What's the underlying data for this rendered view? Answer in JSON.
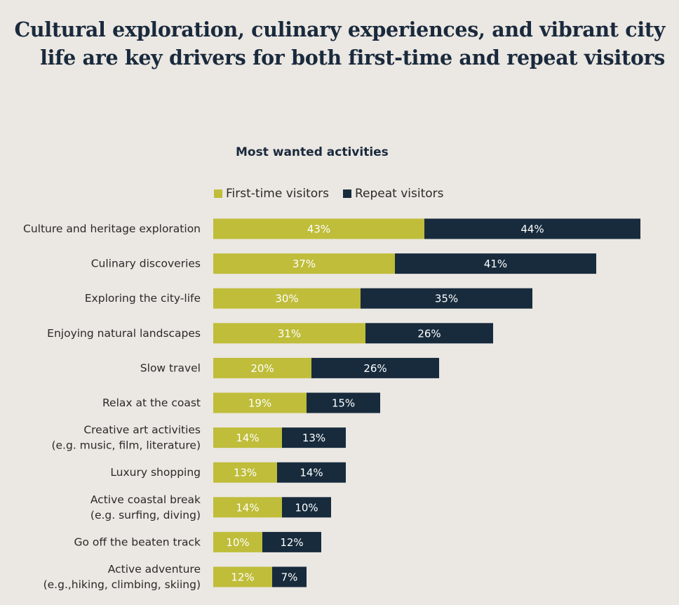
{
  "headline": {
    "line1": "Cultural exploration, culinary experiences, and vibrant city",
    "line2": "life are key drivers for both first-time and repeat visitors"
  },
  "colors": {
    "first_time": "#bfbd3a",
    "repeat": "#172b3d",
    "background": "#ebe7e2"
  },
  "chart_data": {
    "type": "bar",
    "orientation": "horizontal",
    "stacked": true,
    "title": "Most wanted activities",
    "legend_position": "top",
    "categories": [
      [
        "Culture and heritage exploration"
      ],
      [
        "Culinary discoveries"
      ],
      [
        "Exploring the city-life"
      ],
      [
        "Enjoying natural landscapes"
      ],
      [
        "Slow travel"
      ],
      [
        "Relax at the coast"
      ],
      [
        "Creative art activities",
        "(e.g. music, film, literature)"
      ],
      [
        "Luxury shopping"
      ],
      [
        "Active coastal break",
        "(e.g. surfing, diving)"
      ],
      [
        "Go off the beaten track"
      ],
      [
        "Active adventure",
        "(e.g.,hiking, climbing, skiing)"
      ]
    ],
    "series": [
      {
        "name": "First-time visitors",
        "values": [
          43,
          37,
          30,
          31,
          20,
          19,
          14,
          13,
          14,
          10,
          12
        ]
      },
      {
        "name": "Repeat visitors",
        "values": [
          44,
          41,
          35,
          26,
          26,
          15,
          13,
          14,
          10,
          12,
          7
        ]
      }
    ],
    "value_suffix": "%"
  }
}
